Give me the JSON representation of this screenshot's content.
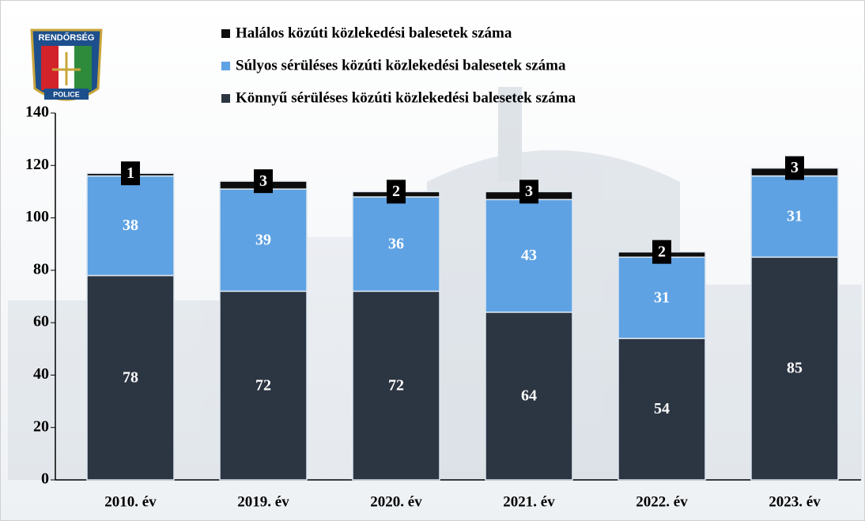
{
  "logo": {
    "top": "RENDŐRSÉG",
    "bottom": "POLICE"
  },
  "chart_data": {
    "type": "stacked_bar",
    "categories": [
      "2010. év",
      "2019. év",
      "2020. év",
      "2021. év",
      "2022. év",
      "2023. év"
    ],
    "series": [
      {
        "name": "Könnyű sérüléses közúti közlekedési balesetek száma",
        "color": "#2c3542",
        "values": [
          78,
          72,
          72,
          64,
          54,
          85
        ]
      },
      {
        "name": "Súlyos sérüléses közúti közlekedési balesetek száma",
        "color": "#5ea2e3",
        "values": [
          38,
          39,
          36,
          43,
          31,
          31
        ]
      },
      {
        "name": "Halálos közúti közlekedési balesetek száma",
        "color": "#0d0d0d",
        "values": [
          1,
          3,
          2,
          3,
          2,
          3
        ]
      }
    ],
    "ylim": [
      0,
      140
    ],
    "yticks": [
      0,
      20,
      40,
      60,
      80,
      100,
      120,
      140
    ],
    "legend": "top"
  }
}
